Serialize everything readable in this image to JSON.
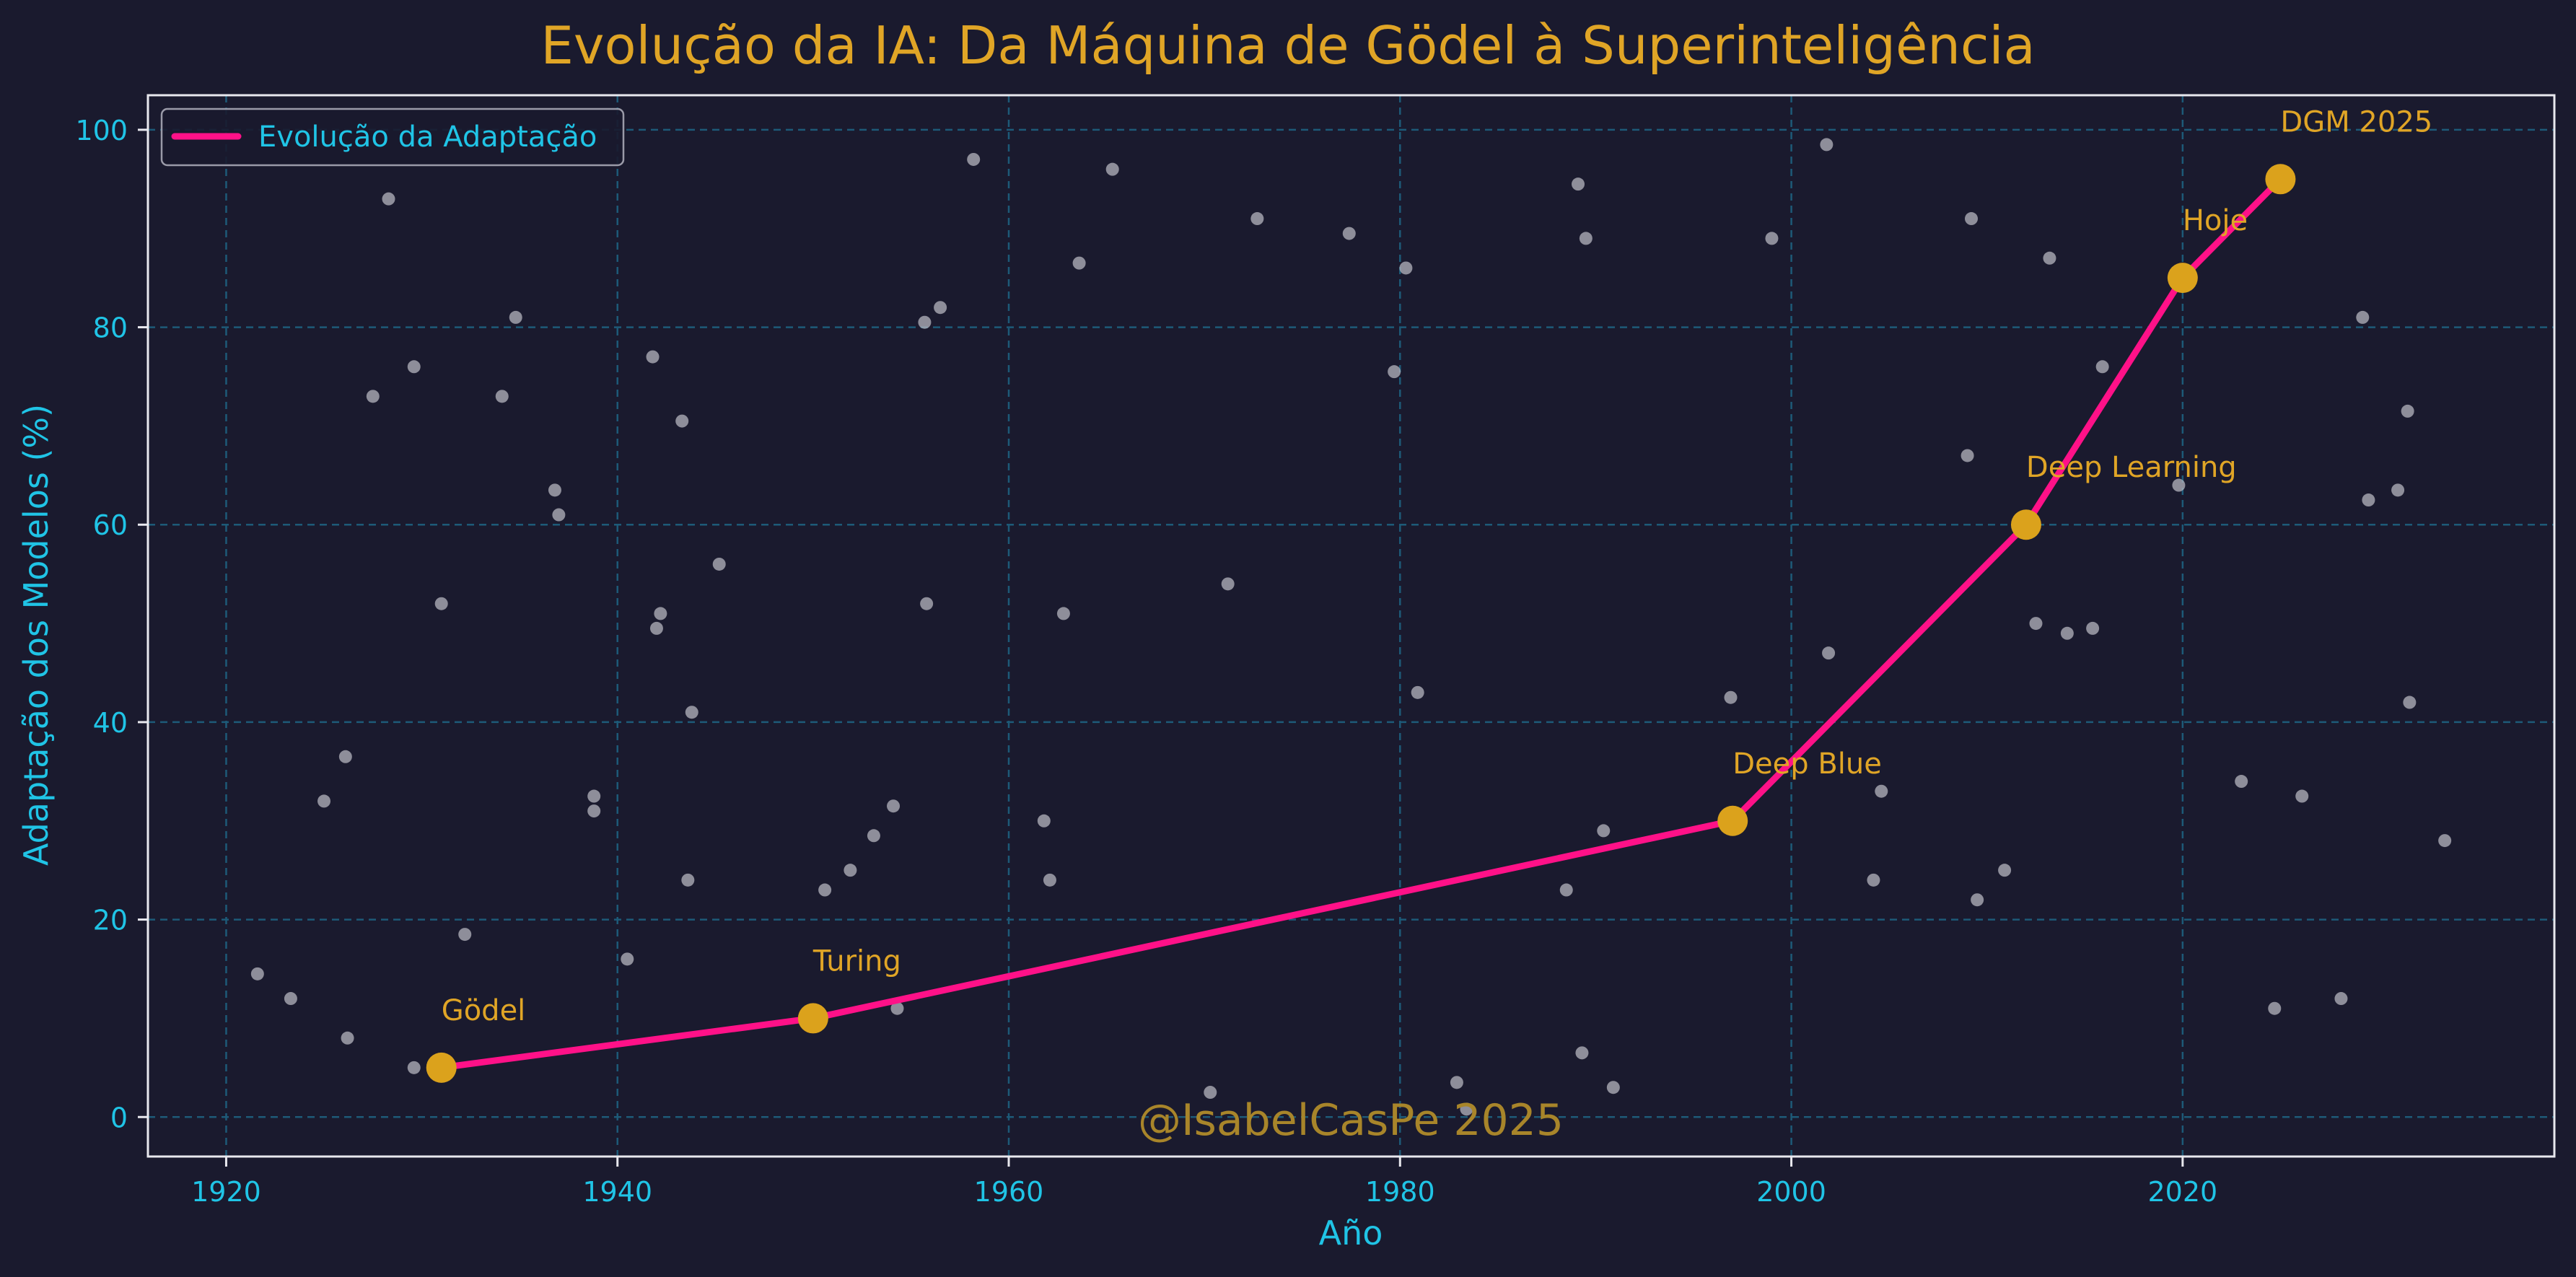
{
  "colors": {
    "background": "#1a1a2e",
    "axis_text": "#20c4e6",
    "title": "#e0a526",
    "grid": "#1d5a78",
    "line": "#ff1188",
    "marker": "#dba21c",
    "annotation": "#e0a526",
    "noise": "#b6b6bf",
    "frame": "#e8e8ee",
    "watermark": "#a8852a"
  },
  "watermark": "@IsabelCasPe 2025",
  "chart_data": {
    "type": "line",
    "title": "Evolução da IA: Da Máquina de Gödel à Superinteligência",
    "xlabel": "Año",
    "ylabel": "Adaptação dos Modelos (%)",
    "xlim": [
      1916,
      2039
    ],
    "ylim": [
      -4,
      103.5
    ],
    "xticks": [
      1920,
      1940,
      1960,
      1980,
      2000,
      2020
    ],
    "yticks": [
      0,
      20,
      40,
      60,
      80,
      100
    ],
    "grid": true,
    "legend": {
      "position": "top-left",
      "entries": [
        "Evolução da Adaptação"
      ]
    },
    "series": [
      {
        "name": "Evolução da Adaptação",
        "x": [
          1931,
          1950,
          1997,
          2012,
          2020,
          2025
        ],
        "y": [
          5,
          10,
          30,
          60,
          85,
          95
        ]
      }
    ],
    "annotations": [
      {
        "x": 1931,
        "y": 5,
        "text": "Gödel"
      },
      {
        "x": 1950,
        "y": 10,
        "text": "Turing"
      },
      {
        "x": 1997,
        "y": 30,
        "text": "Deep Blue"
      },
      {
        "x": 2012,
        "y": 60,
        "text": "Deep Learning"
      },
      {
        "x": 2020,
        "y": 85,
        "text": "Hoje"
      },
      {
        "x": 2025,
        "y": 95,
        "text": "DGM 2025"
      }
    ],
    "background_points": {
      "x": [
        1921.6,
        1923.3,
        1925.0,
        1926.1,
        1926.2,
        1927.5,
        1928.3,
        1929.6,
        1929.6,
        1931.0,
        1932.2,
        1934.1,
        1934.8,
        1936.8,
        1937.0,
        1938.8,
        1938.8,
        1940.5,
        1941.8,
        1942.0,
        1942.2,
        1943.3,
        1943.6,
        1943.8,
        1945.2,
        1950.6,
        1951.9,
        1953.1,
        1954.1,
        1954.3,
        1955.7,
        1955.8,
        1956.5,
        1958.2,
        1961.8,
        1962.1,
        1962.8,
        1963.6,
        1965.3,
        1970.3,
        1971.2,
        1972.7,
        1977.4,
        1979.7,
        1980.3,
        1980.9,
        1982.9,
        1983.4,
        1988.5,
        1989.1,
        1989.3,
        1989.5,
        1990.4,
        1990.9,
        1996.9,
        1999.0,
        2001.8,
        2001.9,
        2004.2,
        2004.6,
        2009.0,
        2009.2,
        2009.5,
        2010.9,
        2012.5,
        2013.2,
        2014.1,
        2015.4,
        2015.9,
        2019.8,
        2023.0,
        2024.7,
        2026.1,
        2028.1,
        2029.2,
        2029.5,
        2031.0,
        2031.5,
        2031.6,
        2033.4
      ],
      "y": [
        14.5,
        12.0,
        32.0,
        36.5,
        8.0,
        73.0,
        93.0,
        76.0,
        5.0,
        52.0,
        18.5,
        73.0,
        81.0,
        63.5,
        61.0,
        32.5,
        31.0,
        16.0,
        77.0,
        49.5,
        51.0,
        70.5,
        24.0,
        41.0,
        56.0,
        23.0,
        25.0,
        28.5,
        31.5,
        11.0,
        80.5,
        52.0,
        82.0,
        97.0,
        30.0,
        24.0,
        51.0,
        86.5,
        96.0,
        2.5,
        54.0,
        91.0,
        89.5,
        75.5,
        86.0,
        43.0,
        3.5,
        0.8,
        23.0,
        94.5,
        6.5,
        89.0,
        29.0,
        3.0,
        42.5,
        89.0,
        98.5,
        47.0,
        24.0,
        33.0,
        67.0,
        91.0,
        22.0,
        25.0,
        50.0,
        87.0,
        49.0,
        49.5,
        76.0,
        64.0,
        34.0,
        11.0,
        32.5,
        12.0,
        81.0,
        62.5,
        63.5,
        71.5,
        42.0,
        28.0
      ]
    }
  }
}
